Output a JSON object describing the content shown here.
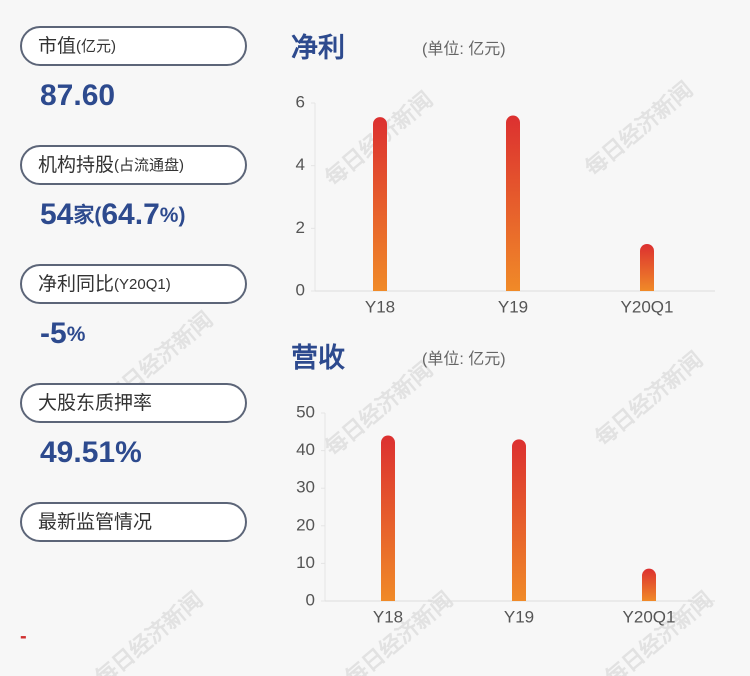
{
  "stats": [
    {
      "label": "市值",
      "unit": "(亿元)",
      "value": [
        "87.60"
      ]
    },
    {
      "label": "机构持股",
      "unit": "(占流通盘)",
      "value": [
        "54",
        "家",
        "(",
        "64.7",
        "%)"
      ]
    },
    {
      "label": "净利同比",
      "unit": "(Y20Q1)",
      "value": [
        "-5",
        "%"
      ]
    },
    {
      "label": "大股东质押率",
      "unit": "",
      "value": [
        "49.51%"
      ]
    },
    {
      "label": "最新监管情况",
      "unit": "",
      "value": []
    }
  ],
  "footer_mark": "-",
  "watermark": "每日经济新闻",
  "chart_data": [
    {
      "type": "bar",
      "title": "净利",
      "subtitle": "(单位: 亿元)",
      "categories": [
        "Y18",
        "Y19",
        "Y20Q1"
      ],
      "values": [
        5.55,
        5.6,
        1.5
      ],
      "color": [
        "#dc3030",
        "#f08a28"
      ],
      "ylim": [
        0,
        6
      ],
      "yticks": [
        0,
        2,
        4,
        6
      ]
    },
    {
      "type": "bar",
      "title": "营收",
      "subtitle": "(单位: 亿元)",
      "categories": [
        "Y18",
        "Y19",
        "Y20Q1"
      ],
      "values": [
        44,
        43,
        8.6
      ],
      "color": [
        "#dc3030",
        "#f08a28"
      ],
      "ylim": [
        0,
        50
      ],
      "yticks": [
        0,
        10,
        20,
        30,
        40,
        50
      ]
    }
  ]
}
